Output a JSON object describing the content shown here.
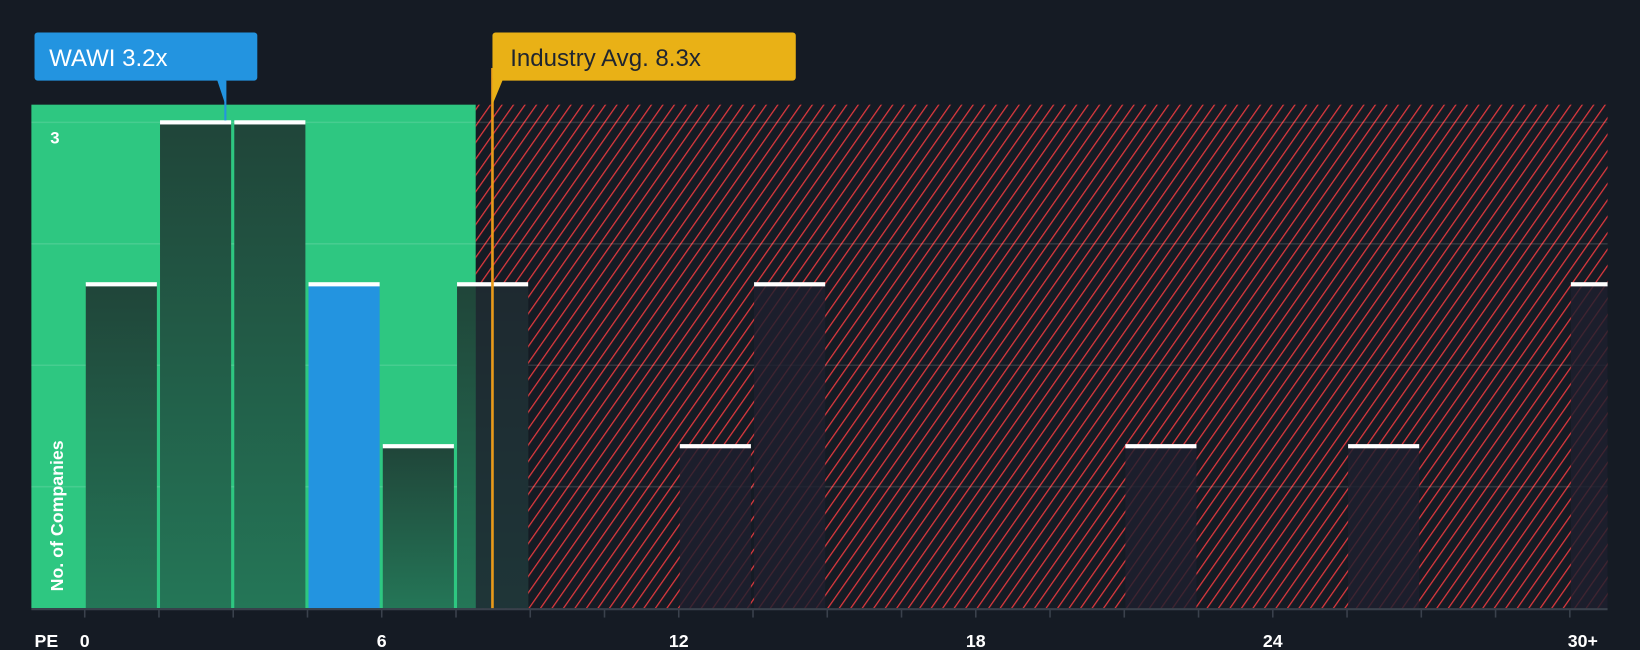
{
  "chart_data": {
    "type": "bar",
    "title": "",
    "xlabel": "PE",
    "ylabel": "No. of Companies",
    "bin_width": 1.5,
    "bins": [
      0,
      1.5,
      3,
      4.5,
      6,
      7.5,
      12,
      13.5,
      21,
      25.5,
      30
    ],
    "values": [
      2,
      3,
      3,
      2,
      1,
      2,
      1,
      2,
      1,
      1,
      2
    ],
    "highlight_bin": 3,
    "x_ticks": [
      {
        "v": 0,
        "label": "0"
      },
      {
        "v": 6,
        "label": "6"
      },
      {
        "v": 12,
        "label": "12"
      },
      {
        "v": 18,
        "label": "18"
      },
      {
        "v": 24,
        "label": "24"
      },
      {
        "v": 30,
        "label": "30+"
      }
    ],
    "y_ticks": [
      {
        "v": 3,
        "label": "3"
      }
    ],
    "gridlines": [
      0.75,
      1.5,
      2.25,
      3
    ],
    "xlim": [
      -1.1,
      30.8
    ],
    "ylim": [
      0,
      3.1
    ],
    "fair_zone_end": 7.9,
    "company": {
      "label": "WAWI 3.2x",
      "value": 3.2
    },
    "industry": {
      "label": "Industry Avg. 8.3x",
      "value": 8.3
    },
    "colors": {
      "background": "#151b24",
      "fair_zone": "#2ec781",
      "overvalued_hatch": "#e0393e",
      "company": "#2394e0",
      "industry": "#e9b116",
      "bar_dark": "#214a3e"
    }
  }
}
